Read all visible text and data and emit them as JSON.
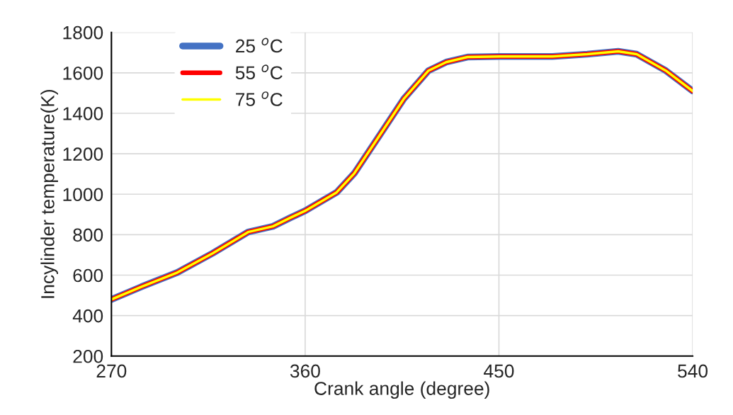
{
  "chart_data": {
    "type": "line",
    "xlabel": "Crank angle (degree)",
    "ylabel": "Incylinder temperature(K)",
    "x": [
      270,
      284,
      300.6,
      317,
      333.5,
      345,
      353,
      360,
      374.6,
      382.8,
      392.7,
      405.8,
      417.3,
      425.5,
      435.4,
      450.5,
      474.8,
      491,
      505.4,
      514,
      527.5,
      540
    ],
    "series": [
      {
        "name": "25 $^{o}$C",
        "color": "#4472c4",
        "values": [
          480,
          543,
          613,
          708,
          813,
          841,
          883,
          918,
          1009,
          1103,
          1261,
          1471,
          1611,
          1653,
          1678,
          1681,
          1681,
          1692,
          1706,
          1692,
          1611,
          1510
        ]
      },
      {
        "name": "55 $^{o}$C",
        "color": "#ff0000",
        "values": [
          480,
          543,
          613,
          708,
          813,
          841,
          883,
          918,
          1009,
          1103,
          1261,
          1471,
          1611,
          1653,
          1678,
          1681,
          1681,
          1692,
          1706,
          1692,
          1611,
          1510
        ]
      },
      {
        "name": "75 $^{o}$C",
        "color": "#ffff00",
        "values": [
          480,
          543,
          613,
          708,
          813,
          841,
          883,
          918,
          1009,
          1103,
          1261,
          1471,
          1611,
          1653,
          1678,
          1681,
          1681,
          1692,
          1706,
          1692,
          1611,
          1510
        ]
      }
    ],
    "xlim": [
      270,
      540
    ],
    "xticks": [
      270,
      360,
      450,
      540
    ],
    "ylim": [
      200,
      1800
    ],
    "yticks": [
      200,
      400,
      600,
      800,
      1000,
      1200,
      1400,
      1600,
      1800
    ],
    "grid": true,
    "legend": "top left",
    "marker": "none",
    "line_style": "solid"
  }
}
